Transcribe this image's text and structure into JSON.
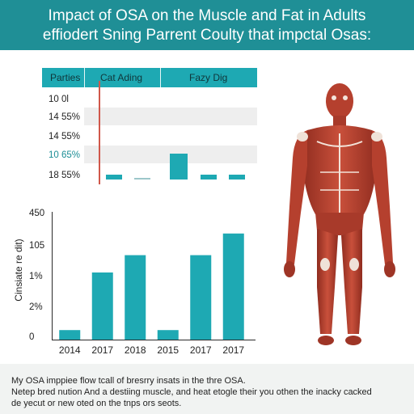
{
  "header": {
    "title_line1": "Impact of OSA on the Muscle and Fat in Adults",
    "title_line2": "effiodert Sning Parrent Coulty that impctal Osas:"
  },
  "footer": {
    "line1": "My OSA imppiee flow tcall of bresrry insats in the thre OSA.",
    "line2": "Netep bred nution And a destiing muscle, and heat etogle their you othen the inacky cacked",
    "line3": "de yecut or new oted on the tnps ors seots."
  },
  "colors": {
    "header": "#1f8f96",
    "bar": "#1ea9b3",
    "marker": "#d0574a",
    "muscle": "#b5402e"
  },
  "illustration": "human-muscle-anatomy-figure",
  "chart_data": [
    {
      "type": "table",
      "headers": [
        "Parties",
        "Cat Ading",
        "Fazy Dig"
      ],
      "rows": [
        "10 0l",
        "14 55%",
        "14 55%",
        "10 65%",
        "18 55%"
      ],
      "highlight_row": 3,
      "mini_bars": [
        3,
        1,
        16,
        3,
        3
      ],
      "mini_ylim": [
        0,
        20
      ]
    },
    {
      "type": "bar",
      "categories": [
        "2014",
        "2017",
        "2018",
        "2015",
        "2017",
        "2017"
      ],
      "values": [
        22,
        155,
        195,
        22,
        195,
        245
      ],
      "ylim": [
        0,
        295
      ],
      "ytick_labels": [
        "450",
        "105",
        "1%",
        "2%",
        "0"
      ],
      "ylabel": "Cinsiate re dit)"
    }
  ]
}
